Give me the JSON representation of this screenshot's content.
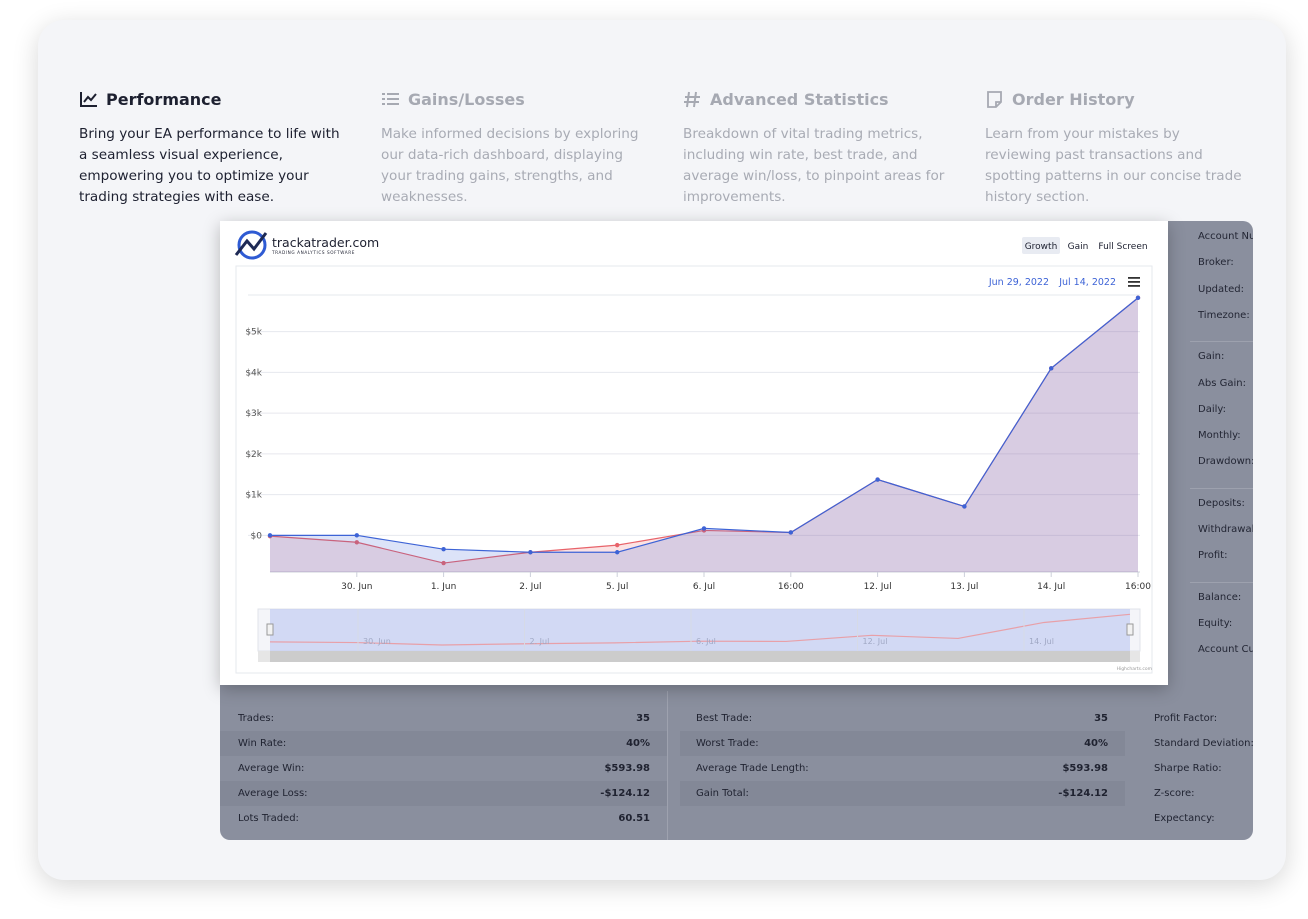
{
  "tabs": [
    {
      "title": "Performance",
      "description": "Bring your EA performance to life with a seamless visual experience, empowering you to optimize your trading strategies with ease."
    },
    {
      "title": "Gains/Losses",
      "description": "Make informed decisions by exploring our data-rich dashboard, displaying your trading gains, strengths, and weaknesses."
    },
    {
      "title": "Advanced Statistics",
      "description": "Breakdown of vital trading metrics, including win rate, best trade, and average win/loss, to pinpoint areas for improvements."
    },
    {
      "title": "Order History",
      "description": "Learn from your mistakes by reviewing past transactions and spotting patterns in our concise trade history section."
    }
  ],
  "chart_card": {
    "logo": "trackatrader.com",
    "logo_tagline": "TRADING ANALYTICS SOFTWARE",
    "buttons": [
      "Growth",
      "Gain",
      "Full Screen"
    ],
    "date_from": "Jun 29, 2022",
    "date_to": "Jul 14, 2022",
    "credit": "Highcharts.com"
  },
  "chart_data": {
    "type": "area",
    "categories": [
      null,
      "30. Jun",
      "1. Jun",
      "2. Jul",
      "5. Jul",
      "6. Jul",
      "16:00",
      "12. Jul",
      "13. Jul",
      "14. Jul",
      "16:00"
    ],
    "series": [
      {
        "color": "#e8636a",
        "values": [
          -20,
          -170,
          -680,
          -415,
          -240,
          120,
          70,
          1370,
          710,
          4100,
          5830
        ]
      },
      {
        "color": "#3d63d6",
        "values": [
          0,
          0,
          -340,
          -415,
          -415,
          170,
          70,
          1370,
          710,
          4100,
          5830
        ]
      }
    ],
    "ylim": [
      -900,
      5900
    ],
    "yticks": [
      {
        "value": 0,
        "label": "$0"
      },
      {
        "value": 1000,
        "label": "$1k"
      },
      {
        "value": 2000,
        "label": "$2k"
      },
      {
        "value": 3000,
        "label": "$3k"
      },
      {
        "value": 4000,
        "label": "$4k"
      },
      {
        "value": 5000,
        "label": "$5k"
      }
    ],
    "grid": true,
    "navigator_labels": [
      "30. Jun",
      "2. Jul",
      "6. Jul",
      "12. Jul",
      "14. Jul"
    ]
  },
  "account_panel": {
    "groups": [
      [
        "Account Number:",
        "Broker:",
        "Updated:",
        "Timezone:"
      ],
      [
        "Gain:",
        "Abs Gain:",
        "Daily:",
        "Monthly:",
        "Drawdown:"
      ],
      [
        "Deposits:",
        "Withdrawals:",
        "Profit:"
      ],
      [
        "Balance:",
        "Equity:",
        "Account Currency:"
      ]
    ]
  },
  "stats": {
    "columns": [
      [
        {
          "label": "Trades:",
          "value": "35"
        },
        {
          "label": "Win Rate:",
          "value": "40%"
        },
        {
          "label": "Average Win:",
          "value": "$593.98"
        },
        {
          "label": "Average Loss:",
          "value": "-$124.12"
        },
        {
          "label": "Lots Traded:",
          "value": "60.51"
        }
      ],
      [
        {
          "label": "Best Trade:",
          "value": "35"
        },
        {
          "label": "Worst Trade:",
          "value": "40%"
        },
        {
          "label": "Average Trade Length:",
          "value": "$593.98"
        },
        {
          "label": "Gain Total:",
          "value": "-$124.12"
        }
      ],
      [
        {
          "label": "Profit Factor:"
        },
        {
          "label": "Standard Deviation:"
        },
        {
          "label": "Sharpe Ratio:"
        },
        {
          "label": "Z-score:"
        },
        {
          "label": "Expectancy:"
        }
      ]
    ]
  }
}
